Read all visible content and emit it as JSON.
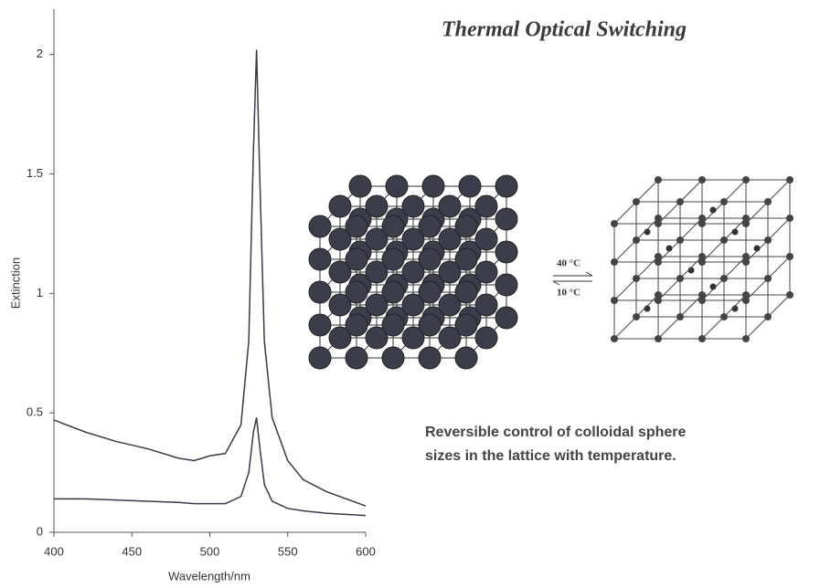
{
  "chart_data": {
    "type": "line",
    "title": "Thermal Optical Switching",
    "xlabel": "Wavelength/nm",
    "ylabel": "Extinction",
    "annotations": [
      "40 °C",
      "10 °C",
      "Reversible control of colloidal sphere",
      "sizes in  the lattice with temperature."
    ],
    "x": [
      400,
      420,
      440,
      460,
      480,
      490,
      500,
      510,
      520,
      525,
      528,
      530,
      532,
      535,
      540,
      550,
      560,
      575,
      600
    ],
    "series": [
      {
        "color": "#3a3a4a",
        "values": [
          0.47,
          0.42,
          0.38,
          0.35,
          0.31,
          0.3,
          0.32,
          0.33,
          0.45,
          0.8,
          1.6,
          2.02,
          1.5,
          0.8,
          0.48,
          0.3,
          0.22,
          0.17,
          0.11
        ]
      },
      {
        "color": "#3a3a4a",
        "values": [
          0.14,
          0.14,
          0.135,
          0.13,
          0.125,
          0.12,
          0.12,
          0.12,
          0.15,
          0.25,
          0.42,
          0.48,
          0.36,
          0.2,
          0.13,
          0.1,
          0.09,
          0.08,
          0.07
        ]
      }
    ],
    "xlim": [
      400,
      600
    ],
    "ylim": [
      0,
      2.19
    ],
    "xticks": [
      400,
      450,
      500,
      550,
      600
    ],
    "yticks": [
      0,
      0.5,
      1,
      1.5,
      2
    ]
  }
}
